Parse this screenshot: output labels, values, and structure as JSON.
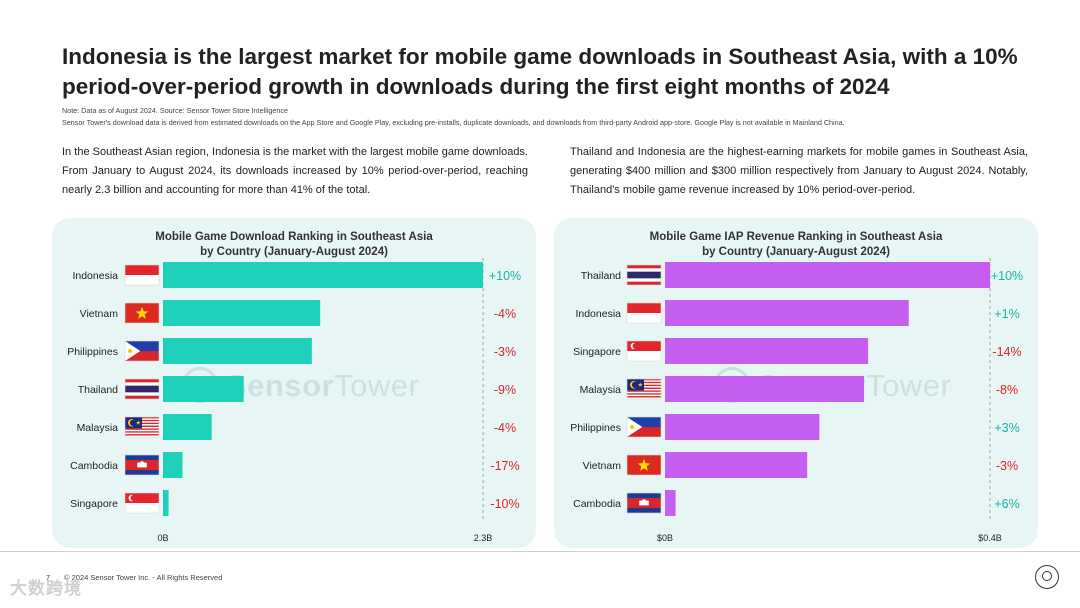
{
  "title": "Indonesia is the largest market for mobile game downloads in Southeast Asia, with a 10% period-over-period growth in downloads during the first eight months of 2024",
  "note_line1": "Note: Data as of August 2024. Source: Sensor Tower Store Intelligence",
  "note_line2": "Sensor Tower's download data is derived from estimated downloads on the App Store and Google Play, excluding pre-installs, duplicate downloads, and downloads from third-party Android app-store. Google Play is not available in Mainland China.",
  "left_paragraph": "In the Southeast Asian region, Indonesia is the market with the largest mobile game downloads. From January to August 2024, its downloads increased by 10% period-over-period, reaching nearly 2.3 billion and accounting for more than 41% of the total.",
  "right_paragraph": "Thailand and Indonesia are the highest-earning markets for mobile games in Southeast Asia, generating $400 million and $300 million respectively from January to August 2024. Notably, Thailand's mobile game revenue increased by 10% period-over-period.",
  "watermark": {
    "brand_a": "Sensor",
    "brand_b": "Tower"
  },
  "footer": {
    "page": "7",
    "copyright": "© 2024 Sensor Tower Inc. - All Rights Reserved",
    "corner_mark": "大数跨境"
  },
  "colors": {
    "downloads_bar": "#1fd1bb",
    "revenue_bar": "#c35ef0",
    "positive": "#16b3a0",
    "negative": "#d6252b",
    "panel_bg": "#e7f6f5"
  },
  "chart_data": [
    {
      "type": "bar",
      "orientation": "horizontal",
      "title_line1": "Mobile Game Download Ranking in Southeast Asia",
      "title_line2": "by Country (January-August 2024)",
      "categories": [
        "Indonesia",
        "Vietnam",
        "Philippines",
        "Thailand",
        "Malaysia",
        "Cambodia",
        "Singapore"
      ],
      "values": [
        2.3,
        1.13,
        1.07,
        0.58,
        0.35,
        0.14,
        0.04
      ],
      "changes": [
        "+10%",
        "-4%",
        "-3%",
        "-9%",
        "-4%",
        "-17%",
        "-10%"
      ],
      "unit": "billion downloads",
      "xlim": [
        0,
        2.3
      ],
      "x_tick_labels": [
        "0B",
        "2.3B"
      ]
    },
    {
      "type": "bar",
      "orientation": "horizontal",
      "title_line1": "Mobile Game IAP Revenue Ranking in Southeast Asia",
      "title_line2": "by Country (January-August 2024)",
      "categories": [
        "Thailand",
        "Indonesia",
        "Singapore",
        "Malaysia",
        "Philippines",
        "Vietnam",
        "Cambodia"
      ],
      "values": [
        0.4,
        0.3,
        0.25,
        0.245,
        0.19,
        0.175,
        0.013
      ],
      "changes": [
        "+10%",
        "+1%",
        "-14%",
        "-8%",
        "+3%",
        "-3%",
        "+6%"
      ],
      "unit": "USD billion",
      "xlim": [
        0,
        0.4
      ],
      "x_tick_labels": [
        "$0B",
        "$0.4B"
      ]
    }
  ]
}
